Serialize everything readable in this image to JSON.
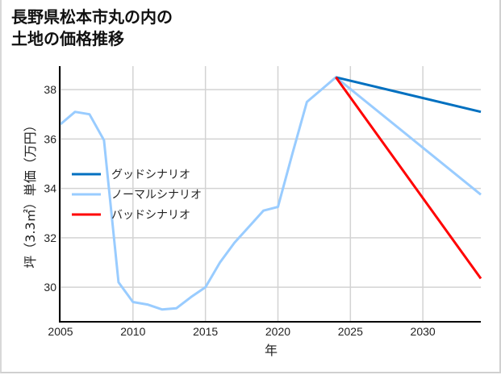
{
  "title": "長野県松本市丸の内の\n土地の価格推移",
  "chart_data": {
    "type": "line",
    "title": "長野県松本市丸の内の土地の価格推移",
    "xlabel": "年",
    "ylabel": "坪（3.3㎡）単価（万円）",
    "xlim": [
      2005,
      2034
    ],
    "ylim": [
      28.6,
      38.95
    ],
    "xticks": [
      2005,
      2010,
      2015,
      2020,
      2025,
      2030
    ],
    "yticks": [
      30,
      32,
      34,
      36,
      38
    ],
    "grid": true,
    "legend_position": "center-left",
    "series": [
      {
        "name": "グッドシナリオ",
        "color": "#0070c0",
        "x": [
          2024,
          2034
        ],
        "values": [
          38.5,
          37.1
        ]
      },
      {
        "name": "ノーマルシナリオ",
        "color": "#99ccff",
        "x": [
          2005,
          2006,
          2007,
          2008,
          2009,
          2010,
          2011,
          2012,
          2013,
          2014,
          2015,
          2016,
          2017,
          2018,
          2019,
          2020,
          2021,
          2022,
          2023,
          2024,
          2034
        ],
        "values": [
          36.6,
          37.1,
          37.0,
          35.95,
          30.2,
          29.4,
          29.3,
          29.1,
          29.15,
          29.6,
          30.0,
          31.0,
          31.8,
          32.45,
          33.1,
          33.25,
          35.4,
          37.5,
          38.0,
          38.5,
          33.75
        ]
      },
      {
        "name": "バッドシナリオ",
        "color": "#ff0000",
        "x": [
          2024,
          2034
        ],
        "values": [
          38.5,
          30.35
        ]
      }
    ]
  }
}
